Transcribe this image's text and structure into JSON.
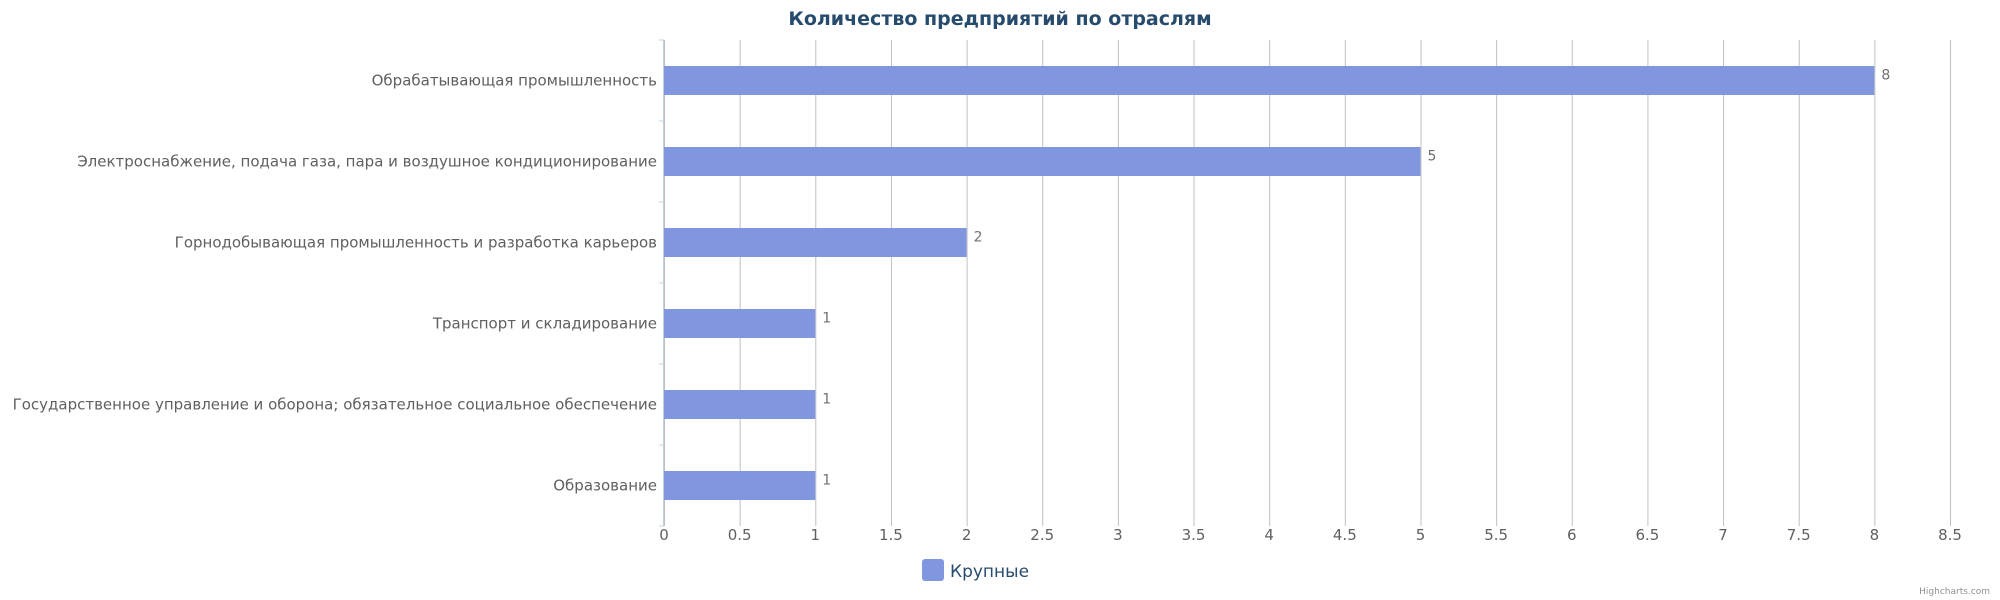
{
  "chart_data": {
    "type": "bar",
    "orientation": "horizontal",
    "title": "Количество предприятий по отраслям",
    "categories": [
      "Обрабатывающая промышленность",
      "Электроснабжение, подача газа, пара и воздушное кондиционирование",
      "Горнодобывающая промышленность и разработка карьеров",
      "Транспорт и складирование",
      "Государственное управление и оборона; обязательное социальное обеспечение",
      "Образование"
    ],
    "series": [
      {
        "name": "Крупные",
        "values": [
          8,
          5,
          2,
          1,
          1,
          1
        ],
        "color": "#8096de"
      }
    ],
    "xlim": [
      0,
      8.5
    ],
    "ticks": [
      "0",
      "0.5",
      "1",
      "1.5",
      "2",
      "2.5",
      "3",
      "3.5",
      "4",
      "4.5",
      "5",
      "5.5",
      "6",
      "6.5",
      "7",
      "7.5",
      "8",
      "8.5"
    ],
    "grid": true,
    "legend": "bottom-center",
    "data_labels": true
  },
  "credit": "Highcharts.com"
}
